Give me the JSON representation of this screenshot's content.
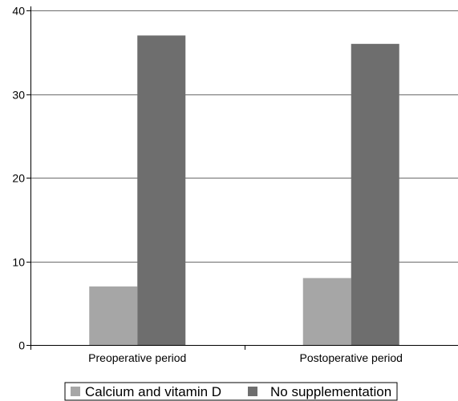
{
  "chart_data": {
    "type": "bar",
    "title": "",
    "xlabel": "",
    "ylabel": "",
    "categories": [
      "Preoperative period",
      "Postoperative period"
    ],
    "series": [
      {
        "name": "Calcium and vitamin D",
        "values": [
          7,
          8
        ],
        "color": "#a6a6a6"
      },
      {
        "name": "No supplementation",
        "values": [
          37,
          36
        ],
        "color": "#6e6e6e"
      }
    ],
    "ylim": [
      0,
      40
    ],
    "yticks": [
      0,
      10,
      20,
      30,
      40
    ],
    "ytick_labels": [
      "0",
      "10",
      "20",
      "30",
      "40"
    ],
    "grid": true,
    "legend_position": "bottom"
  }
}
